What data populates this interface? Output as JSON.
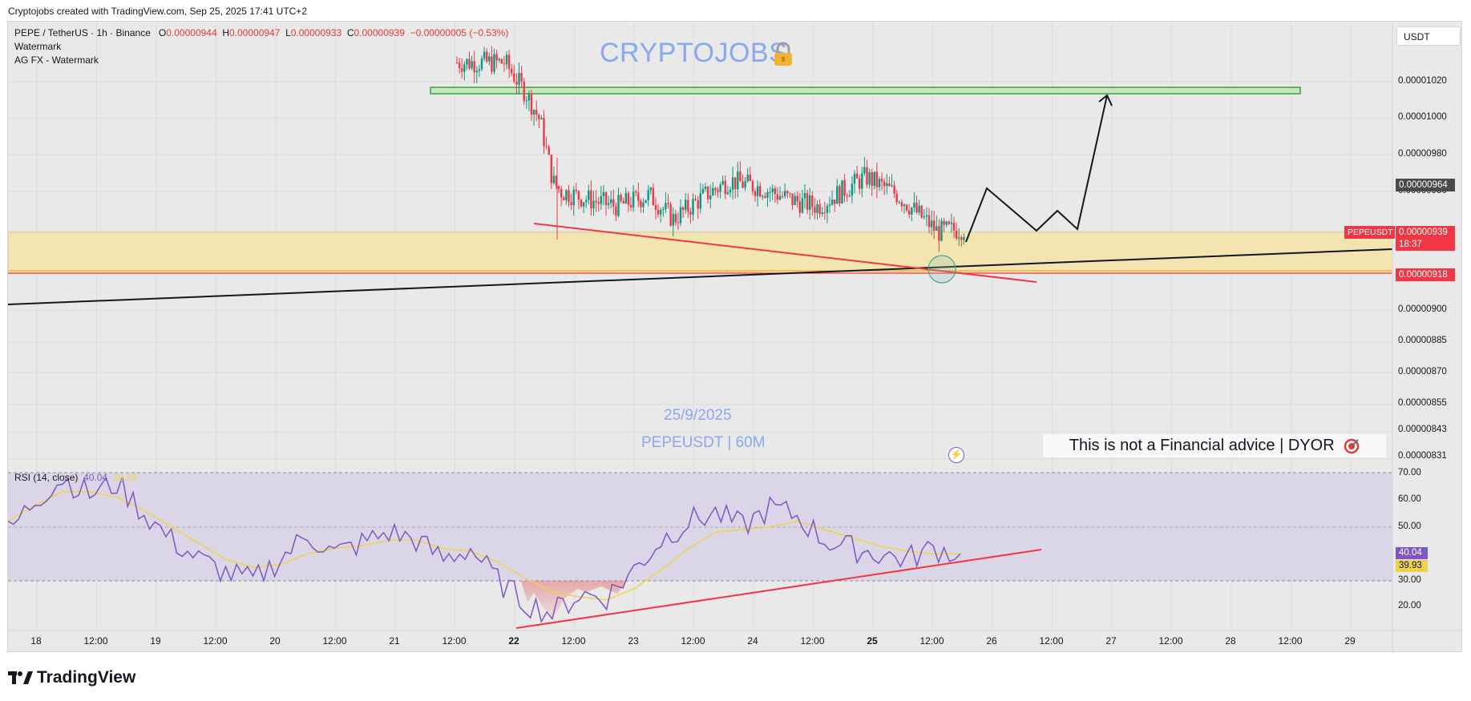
{
  "header": {
    "credit": "Cryptojobs created with TradingView.com, Sep 25, 2025 17:41 UTC+2"
  },
  "legend": {
    "symbol": "PEPE / TetherUS · 1h · Binance",
    "o_label": "O",
    "o_value": "0.00000944",
    "h_label": "H",
    "h_value": "0.00000947",
    "l_label": "L",
    "l_value": "0.00000933",
    "c_label": "C",
    "c_value": "0.00000939",
    "change": "−0.00000005 (−0.53%)",
    "line2": "Watermark",
    "line3": "AG FX - Watermark"
  },
  "currency_button": "USDT",
  "annotations": {
    "watermark": "CRYPTOJOBS",
    "date": "25/9/2025",
    "pair": "PEPEUSDT | 60M",
    "disclaimer": "This is not a Financial advice | DYOR"
  },
  "price_axis": {
    "labels": [
      "0.00001020",
      "0.00001000",
      "0.00000980",
      "0.00000950",
      "0.00000900",
      "0.00000885",
      "0.00000870",
      "0.00000855",
      "0.00000843",
      "0.00000831"
    ],
    "tag_marker": "0.00000964",
    "tag_symbol": "PEPEUSDT",
    "tag_last": "0.00000939",
    "tag_countdown": "18:37",
    "tag_support": "0.00000918"
  },
  "rsi_axis": {
    "labels": [
      "70.00",
      "60.00",
      "50.00",
      "30.00",
      "20.00"
    ],
    "tag_rsi": "40.04",
    "tag_ma": "39.93"
  },
  "rsi_legend": {
    "name": "RSI (14, close)",
    "rsi": "40.04",
    "ma": "39.93"
  },
  "time_axis": [
    "18",
    "12:00",
    "19",
    "12:00",
    "20",
    "12:00",
    "21",
    "12:00",
    "22",
    "12:00",
    "23",
    "12:00",
    "24",
    "12:00",
    "25",
    "12:00",
    "26",
    "12:00",
    "27",
    "12:00",
    "28",
    "12:00",
    "29"
  ],
  "footer": {
    "logo": "TradingView"
  },
  "colors": {
    "up": "#089981",
    "down": "#f23645",
    "support_zone": "#f5e6a8",
    "resistance_zone": "#4caf50",
    "trendline_red": "#f23645",
    "rsi_line": "#7e57c2",
    "rsi_ma": "#f0d24a"
  },
  "chart_data": [
    {
      "type": "candlestick",
      "title": "PEPE / TetherUS · 1h · Binance",
      "x_range": [
        "Sep 18",
        "Sep 29"
      ],
      "ylim": [
        8.25e-06,
        1.03e-05
      ],
      "last_close": 9.39e-06,
      "candles_ohlc_sample": [
        {
          "t": "Sep 22 00:00",
          "o": 1.01e-05,
          "h": 1.012e-05,
          "l": 9.98e-06,
          "c": 1.003e-05
        },
        {
          "t": "Sep 22 03:00",
          "o": 9.85e-06,
          "h": 9.9e-06,
          "l": 9.6e-06,
          "c": 9.65e-06
        },
        {
          "t": "Sep 22 05:00",
          "o": 9.65e-06,
          "h": 9.7e-06,
          "l": 9.3e-06,
          "c": 9.6e-06
        },
        {
          "t": "Sep 22 12:00",
          "o": 9.62e-06,
          "h": 9.68e-06,
          "l": 9.55e-06,
          "c": 9.58e-06
        },
        {
          "t": "Sep 23 12:00",
          "o": 9.63e-06,
          "h": 9.72e-06,
          "l": 9.53e-06,
          "c": 9.68e-06
        },
        {
          "t": "Sep 24 06:00",
          "o": 9.6e-06,
          "h": 9.64e-06,
          "l": 9.34e-06,
          "c": 9.5e-06
        },
        {
          "t": "Sep 24 16:00",
          "o": 9.65e-06,
          "h": 9.75e-06,
          "l": 9.58e-06,
          "c": 9.7e-06
        },
        {
          "t": "Sep 25 12:00",
          "o": 9.44e-06,
          "h": 9.47e-06,
          "l": 9.33e-06,
          "c": 9.39e-06
        }
      ],
      "levels": {
        "resistance_zone": [
          1.019e-05,
          1.023e-05
        ],
        "support_zone": [
          9.18e-06,
          9.39e-06
        ],
        "support_line": 9.18e-06
      }
    },
    {
      "type": "line",
      "title": "RSI (14, close)",
      "ylim": [
        10,
        75
      ],
      "levels": [
        70,
        50,
        30
      ],
      "series": [
        {
          "name": "RSI",
          "values": [
            48,
            60,
            68,
            62,
            66,
            55,
            45,
            38,
            33,
            30,
            38,
            47,
            40,
            44,
            48,
            45,
            38,
            42,
            30,
            22,
            18,
            25,
            24,
            34,
            45,
            52,
            55,
            50,
            57,
            54,
            45,
            42,
            40,
            38,
            42,
            40
          ]
        },
        {
          "name": "MA",
          "values": [
            52,
            58,
            63,
            63,
            61,
            56,
            50,
            44,
            38,
            35,
            36,
            40,
            42,
            43,
            45,
            45,
            42,
            41,
            37,
            31,
            26,
            24,
            23,
            27,
            34,
            42,
            48,
            49,
            50,
            52,
            49,
            46,
            43,
            41,
            40,
            40
          ]
        }
      ],
      "current": {
        "rsi": 40.04,
        "ma": 39.93
      }
    }
  ]
}
